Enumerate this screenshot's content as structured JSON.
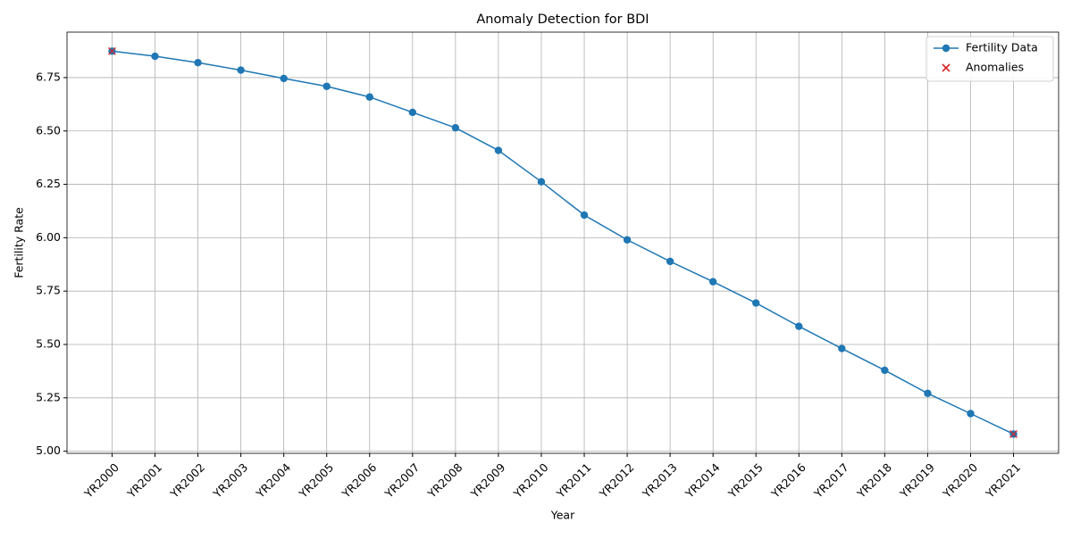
{
  "chart_data": {
    "type": "line",
    "title": "Anomaly Detection for BDI",
    "x_label": "Year",
    "y_label": "Fertility Rate",
    "categories": [
      "YR2000",
      "YR2001",
      "YR2002",
      "YR2003",
      "YR2004",
      "YR2005",
      "YR2006",
      "YR2007",
      "YR2008",
      "YR2009",
      "YR2010",
      "YR2011",
      "YR2012",
      "YR2013",
      "YR2014",
      "YR2015",
      "YR2016",
      "YR2017",
      "YR2018",
      "YR2019",
      "YR2020",
      "YR2021"
    ],
    "series": [
      {
        "name": "Fertility Data",
        "color": "#1f77b4",
        "marker": "o",
        "values": [
          6.874,
          6.85,
          6.82,
          6.785,
          6.746,
          6.709,
          6.659,
          6.587,
          6.515,
          6.409,
          6.262,
          6.106,
          5.99,
          5.889,
          5.794,
          5.694,
          5.585,
          5.481,
          5.379,
          5.271,
          5.176,
          5.08
        ]
      },
      {
        "name": "Anomalies",
        "color": "#d62728",
        "marker": "x",
        "values": [
          6.874,
          null,
          null,
          null,
          null,
          null,
          null,
          null,
          null,
          null,
          null,
          null,
          null,
          null,
          null,
          null,
          null,
          null,
          null,
          null,
          null,
          5.08
        ]
      }
    ],
    "ylim": [
      4.99,
      6.963
    ],
    "yticks": [
      {
        "value": 5,
        "label": "5.00"
      },
      {
        "value": 5.25,
        "label": "5.25"
      },
      {
        "value": 5.5,
        "label": "5.50"
      },
      {
        "value": 5.75,
        "label": "5.75"
      },
      {
        "value": 6,
        "label": "6.00"
      },
      {
        "value": 6.25,
        "label": "6.25"
      },
      {
        "value": 6.5,
        "label": "6.50"
      },
      {
        "value": 6.75,
        "label": "6.75"
      }
    ],
    "grid": true,
    "legend": "upper right"
  }
}
